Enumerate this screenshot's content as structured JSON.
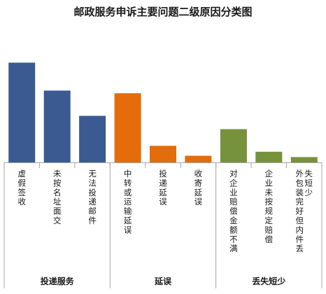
{
  "chart_data": {
    "type": "bar",
    "title": "邮政服务申诉主要问题二级原因分类图",
    "xlabel": "",
    "ylabel": "",
    "grid": false,
    "legend": "none",
    "ylim": [
      0,
      160
    ],
    "groups": [
      {
        "name": "投递服务",
        "color": "#3b5a91"
      },
      {
        "name": "延误",
        "color": "#e46c0a"
      },
      {
        "name": "丢失短少",
        "color": "#76923c"
      }
    ],
    "categories": [
      "虚假签收",
      "未按名址面交",
      "无法投递邮件",
      "中转或运输延误",
      "投递延误",
      "收寄延误",
      "对企业赔偿金额不满",
      "企业未按规定赔偿",
      "外包装完好但内件丢失短少"
    ],
    "category_group": [
      0,
      0,
      0,
      1,
      1,
      1,
      2,
      2,
      2
    ],
    "values": [
      150,
      108,
      70,
      104,
      25,
      10,
      50,
      16,
      8
    ]
  }
}
